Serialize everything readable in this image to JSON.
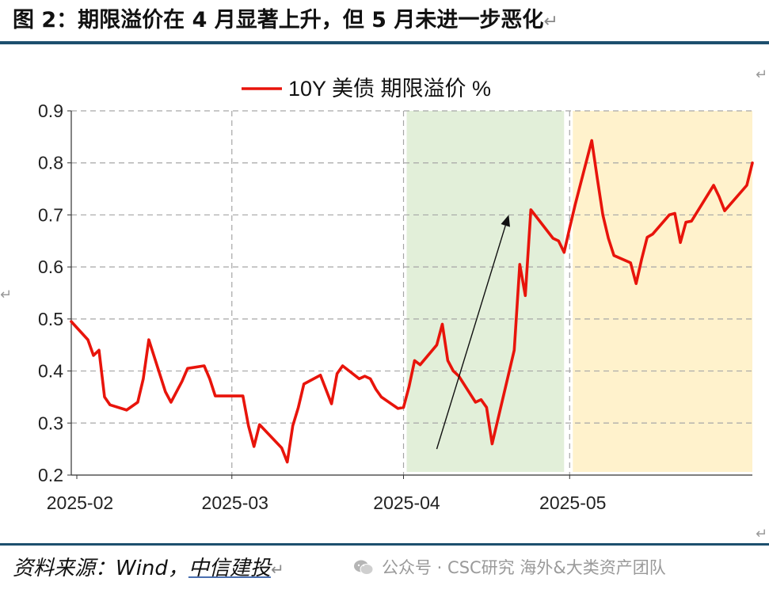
{
  "header": {
    "title": "图 2：期限溢价在 4 月显著上升，但 5 月未进一步恶化",
    "return_glyph": "↵"
  },
  "footer": {
    "source_prefix": "资料来源：Wind，",
    "source_link": "中信建投",
    "return_glyph": "↵",
    "watermark": "公众号 · CSC研究 海外&大类资产团队"
  },
  "colors": {
    "line": "#e8140b",
    "shade_april": "#e2efd9",
    "shade_may": "#fff2cc",
    "rule": "#1d4f6e"
  },
  "chart_data": {
    "type": "line",
    "title": "",
    "xlabel": "",
    "ylabel": "",
    "ylim": [
      0.2,
      0.9
    ],
    "yticks": [
      "0.2",
      "0.3",
      "0.4",
      "0.5",
      "0.6",
      "0.7",
      "0.8",
      "0.9"
    ],
    "xlim": [
      "2025-01-31",
      "2025-05-29"
    ],
    "xticks": [
      {
        "date": "2025-02-01",
        "label": "2025-02"
      },
      {
        "date": "2025-03-01",
        "label": "2025-03"
      },
      {
        "date": "2025-04-01",
        "label": "2025-04"
      },
      {
        "date": "2025-05-01",
        "label": "2025-05"
      }
    ],
    "grid": true,
    "legend": "top-center",
    "series": [
      {
        "name": "10Y 美债 期限溢价 %",
        "color": "#e8140b",
        "points": [
          [
            "2025-01-31",
            0.495
          ],
          [
            "2025-02-03",
            0.46
          ],
          [
            "2025-02-04",
            0.43
          ],
          [
            "2025-02-05",
            0.44
          ],
          [
            "2025-02-06",
            0.35
          ],
          [
            "2025-02-07",
            0.335
          ],
          [
            "2025-02-10",
            0.325
          ],
          [
            "2025-02-12",
            0.34
          ],
          [
            "2025-02-13",
            0.385
          ],
          [
            "2025-02-14",
            0.46
          ],
          [
            "2025-02-17",
            0.36
          ],
          [
            "2025-02-18",
            0.34
          ],
          [
            "2025-02-20",
            0.38
          ],
          [
            "2025-02-21",
            0.405
          ],
          [
            "2025-02-24",
            0.41
          ],
          [
            "2025-02-25",
            0.385
          ],
          [
            "2025-02-26",
            0.352
          ],
          [
            "2025-02-28",
            0.352
          ],
          [
            "2025-03-03",
            0.352
          ],
          [
            "2025-03-04",
            0.295
          ],
          [
            "2025-03-05",
            0.255
          ],
          [
            "2025-03-06",
            0.297
          ],
          [
            "2025-03-10",
            0.252
          ],
          [
            "2025-03-11",
            0.225
          ],
          [
            "2025-03-12",
            0.295
          ],
          [
            "2025-03-13",
            0.33
          ],
          [
            "2025-03-14",
            0.375
          ],
          [
            "2025-03-17",
            0.392
          ],
          [
            "2025-03-19",
            0.337
          ],
          [
            "2025-03-20",
            0.395
          ],
          [
            "2025-03-21",
            0.41
          ],
          [
            "2025-03-24",
            0.385
          ],
          [
            "2025-03-25",
            0.39
          ],
          [
            "2025-03-26",
            0.385
          ],
          [
            "2025-03-27",
            0.365
          ],
          [
            "2025-03-28",
            0.35
          ],
          [
            "2025-03-31",
            0.328
          ],
          [
            "2025-04-01",
            0.33
          ],
          [
            "2025-04-02",
            0.37
          ],
          [
            "2025-04-03",
            0.42
          ],
          [
            "2025-04-04",
            0.412
          ],
          [
            "2025-04-07",
            0.45
          ],
          [
            "2025-04-08",
            0.49
          ],
          [
            "2025-04-09",
            0.42
          ],
          [
            "2025-04-10",
            0.4
          ],
          [
            "2025-04-11",
            0.39
          ],
          [
            "2025-04-14",
            0.34
          ],
          [
            "2025-04-15",
            0.345
          ],
          [
            "2025-04-16",
            0.33
          ],
          [
            "2025-04-17",
            0.26
          ],
          [
            "2025-04-21",
            0.44
          ],
          [
            "2025-04-22",
            0.605
          ],
          [
            "2025-04-23",
            0.545
          ],
          [
            "2025-04-24",
            0.71
          ],
          [
            "2025-04-28",
            0.655
          ],
          [
            "2025-04-29",
            0.65
          ],
          [
            "2025-04-30",
            0.628
          ],
          [
            "2025-05-01",
            0.675
          ],
          [
            "2025-05-02",
            0.72
          ],
          [
            "2025-05-05",
            0.843
          ],
          [
            "2025-05-06",
            0.77
          ],
          [
            "2025-05-07",
            0.7
          ],
          [
            "2025-05-08",
            0.655
          ],
          [
            "2025-05-09",
            0.622
          ],
          [
            "2025-05-12",
            0.608
          ],
          [
            "2025-05-13",
            0.568
          ],
          [
            "2025-05-14",
            0.615
          ],
          [
            "2025-05-15",
            0.657
          ],
          [
            "2025-05-16",
            0.663
          ],
          [
            "2025-05-19",
            0.7
          ],
          [
            "2025-05-20",
            0.703
          ],
          [
            "2025-05-21",
            0.647
          ],
          [
            "2025-05-22",
            0.686
          ],
          [
            "2025-05-23",
            0.688
          ],
          [
            "2025-05-27",
            0.757
          ],
          [
            "2025-05-28",
            0.735
          ],
          [
            "2025-05-29",
            0.708
          ],
          [
            "2025-06-02",
            0.757
          ],
          [
            "2025-06-03",
            0.8
          ]
        ]
      }
    ],
    "shaded_regions": [
      {
        "from": "2025-04-01",
        "to": "2025-04-30",
        "color": "#e2efd9"
      },
      {
        "from": "2025-05-01",
        "to": "2025-06-03",
        "color": "#fff2cc"
      }
    ],
    "annotations": [
      {
        "type": "arrow",
        "from": [
          "2025-04-07",
          0.25
        ],
        "to": [
          "2025-04-20",
          0.7
        ]
      }
    ]
  }
}
